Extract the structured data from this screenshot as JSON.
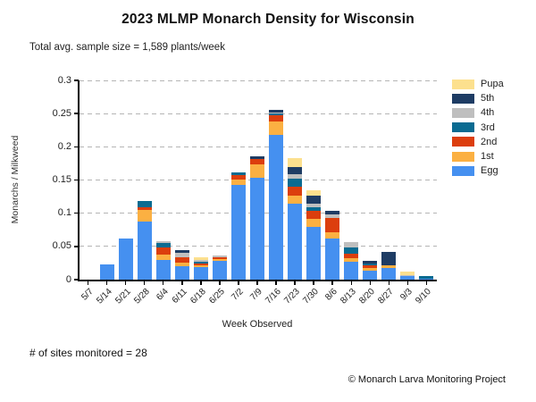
{
  "subtitle": "Total avg. sample size = 1,589 plants/week",
  "footer": {
    "sites_text": "# of sites monitored = 28",
    "credit_text": "© Monarch Larva Monitoring Project"
  },
  "colors": {
    "egg": "#4590F0",
    "first": "#FBB042",
    "second": "#DC3E0D",
    "third": "#0A6B91",
    "fourth": "#BFBFBF",
    "fifth": "#1E3C64",
    "pupa": "#FCE08E",
    "gridline": "#B5B5B5",
    "axis": "#000000"
  },
  "chart_data": {
    "type": "bar",
    "stacked": true,
    "title": "2023 MLMP Monarch Density for Wisconsin",
    "xlabel": "Week Observed",
    "ylabel": "Monarchs / Milkweed",
    "ylim": [
      0,
      0.3
    ],
    "yticks": [
      0,
      0.05,
      0.1,
      0.15,
      0.2,
      0.25,
      0.3
    ],
    "ytick_labels": [
      "0",
      "0.05",
      "0.1",
      "0.15",
      "0.2",
      "0.25",
      "0.3"
    ],
    "grid": "horizontal-dashed",
    "legend_position": "top-right",
    "legend_order_top_to_bottom": [
      "Pupa",
      "5th",
      "4th",
      "3rd",
      "2nd",
      "1st",
      "Egg"
    ],
    "categories": [
      "5/7",
      "5/14",
      "5/21",
      "5/28",
      "6/4",
      "6/11",
      "6/18",
      "6/25",
      "7/2",
      "7/9",
      "7/16",
      "7/23",
      "7/30",
      "8/6",
      "8/13",
      "8/20",
      "8/27",
      "9/3",
      "9/10"
    ],
    "series": [
      {
        "name": "Egg",
        "color": "#4590F0",
        "values": [
          0,
          0.023,
          0.062,
          0.088,
          0.03,
          0.02,
          0.019,
          0.028,
          0.142,
          0.154,
          0.218,
          0.114,
          0.079,
          0.062,
          0.027,
          0.014,
          0.017,
          0.005,
          0.002
        ]
      },
      {
        "name": "1st",
        "color": "#FBB042",
        "values": [
          0,
          0,
          0,
          0.017,
          0.008,
          0.005,
          0.003,
          0.003,
          0.009,
          0.019,
          0.02,
          0.013,
          0.012,
          0.009,
          0.005,
          0.004,
          0.005,
          0,
          0
        ]
      },
      {
        "name": "2nd",
        "color": "#DC3E0D",
        "values": [
          0,
          0,
          0,
          0.004,
          0.01,
          0.008,
          0.002,
          0.003,
          0.006,
          0.008,
          0.01,
          0.013,
          0.012,
          0.022,
          0.007,
          0.003,
          0,
          0,
          0
        ]
      },
      {
        "name": "3rd",
        "color": "#0A6B91",
        "values": [
          0,
          0,
          0,
          0.009,
          0.007,
          0,
          0.003,
          0,
          0.005,
          0,
          0.002,
          0.012,
          0.006,
          0,
          0.01,
          0.003,
          0,
          0,
          0.004
        ]
      },
      {
        "name": "4th",
        "color": "#BFBFBF",
        "values": [
          0,
          0,
          0,
          0,
          0.003,
          0.008,
          0.003,
          0.002,
          0,
          0,
          0.002,
          0.007,
          0.006,
          0.005,
          0.007,
          0,
          0,
          0.002,
          0
        ]
      },
      {
        "name": "5th",
        "color": "#1E3C64",
        "values": [
          0,
          0,
          0,
          0,
          0,
          0.003,
          0,
          0,
          0,
          0.004,
          0.003,
          0.011,
          0.012,
          0.005,
          0,
          0.004,
          0.02,
          0,
          0
        ]
      },
      {
        "name": "Pupa",
        "color": "#FCE08E",
        "values": [
          0,
          0,
          0,
          0,
          0,
          0,
          0.004,
          0,
          0,
          0,
          0,
          0.013,
          0.007,
          0,
          0,
          0,
          0,
          0.005,
          0
        ]
      }
    ],
    "totals": [
      0,
      0.023,
      0.062,
      0.118,
      0.058,
      0.044,
      0.034,
      0.036,
      0.162,
      0.185,
      0.255,
      0.183,
      0.134,
      0.103,
      0.056,
      0.028,
      0.042,
      0.012,
      0.006
    ]
  }
}
